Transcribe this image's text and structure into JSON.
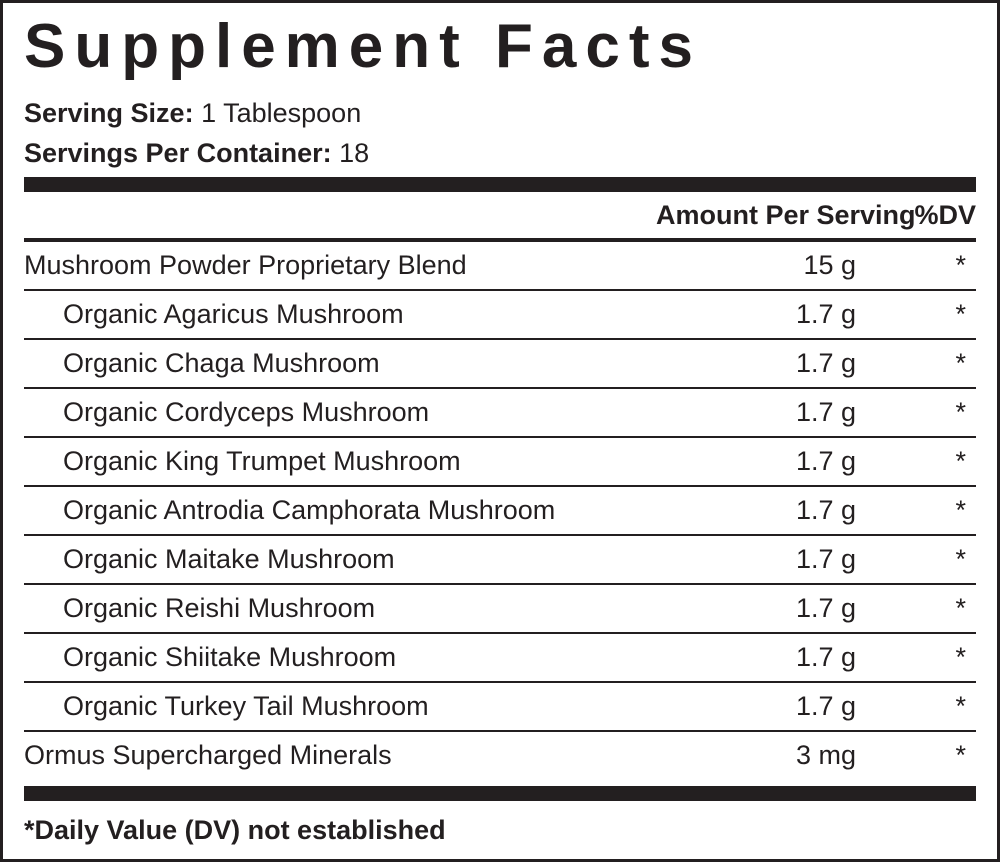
{
  "title": "Supplement Facts",
  "serving_size": {
    "label": "Serving Size:",
    "value": "1 Tablespoon"
  },
  "servings_per_container": {
    "label": "Servings Per Container:",
    "value": "18"
  },
  "header": {
    "amount": "Amount Per Serving",
    "dv": "%DV"
  },
  "rows": [
    {
      "name": "Mushroom Powder Proprietary Blend",
      "amount": "15 g",
      "dv": "*",
      "sub_ingredients": [
        {
          "name": "Organic Agaricus Mushroom",
          "amount": "1.7 g",
          "dv": "*"
        },
        {
          "name": "Organic Chaga Mushroom",
          "amount": "1.7 g",
          "dv": "*"
        },
        {
          "name": "Organic Cordyceps Mushroom",
          "amount": "1.7 g",
          "dv": "*"
        },
        {
          "name": "Organic King Trumpet Mushroom",
          "amount": "1.7 g",
          "dv": "*"
        },
        {
          "name": "Organic Antrodia Camphorata Mushroom",
          "amount": "1.7 g",
          "dv": "*"
        },
        {
          "name": "Organic Maitake Mushroom",
          "amount": "1.7 g",
          "dv": "*"
        },
        {
          "name": "Organic Reishi Mushroom",
          "amount": "1.7 g",
          "dv": "*"
        },
        {
          "name": "Organic Shiitake Mushroom",
          "amount": "1.7 g",
          "dv": "*"
        },
        {
          "name": "Organic Turkey Tail Mushroom",
          "amount": "1.7 g",
          "dv": "*"
        }
      ]
    },
    {
      "name": "Ormus Supercharged Minerals",
      "amount": "3 mg",
      "dv": "*"
    }
  ],
  "footnote": "*Daily Value (DV) not established"
}
